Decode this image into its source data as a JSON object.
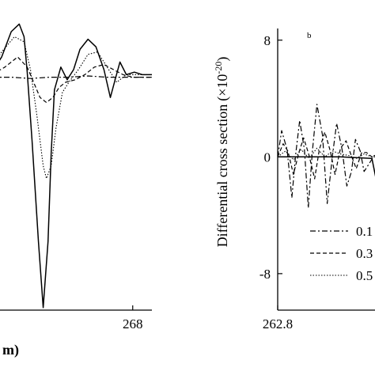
{
  "chart_data": [
    {
      "type": "line",
      "panel_label": "",
      "xlabel": "m)",
      "ylabel": "",
      "xlim": [
        263.6,
        268.6
      ],
      "ylim": [
        -9.2,
        2.8
      ],
      "x_ticks": [
        268
      ],
      "x_tick_labels": [
        "268"
      ],
      "grid": false,
      "series": [
        {
          "name": "",
          "style": "solid",
          "x": [
            263.6,
            263.9,
            264.2,
            264.45,
            264.6,
            264.7,
            264.85,
            265.05,
            265.2,
            265.35,
            265.45,
            265.55,
            265.75,
            265.95,
            266.15,
            266.35,
            266.6,
            266.85,
            267.1,
            267.3,
            267.45,
            267.6,
            267.8,
            268.05,
            268.3,
            268.6
          ],
          "y": [
            0.2,
            0.8,
            1.8,
            2.1,
            1.6,
            0.2,
            -2.5,
            -6.5,
            -9.1,
            -6.5,
            -3.0,
            -0.5,
            0.4,
            -0.1,
            0.3,
            1.1,
            1.5,
            1.2,
            0.3,
            -0.8,
            -0.1,
            0.6,
            0.1,
            0.2,
            0.1,
            0.1
          ]
        },
        {
          "name": "",
          "style": "dash-dot",
          "x": [
            263.6,
            264.2,
            264.8,
            265.4,
            266.0,
            266.6,
            267.2,
            267.8,
            268.6
          ],
          "y": [
            0.0,
            0.0,
            -0.05,
            0.0,
            0.0,
            0.05,
            0.0,
            0.0,
            0.0
          ]
        },
        {
          "name": "",
          "style": "dashed",
          "x": [
            263.6,
            264.0,
            264.4,
            264.7,
            264.9,
            265.1,
            265.3,
            265.5,
            265.7,
            265.9,
            266.2,
            266.5,
            266.8,
            267.1,
            267.4,
            267.7,
            268.0,
            268.3,
            268.6
          ],
          "y": [
            0.1,
            0.4,
            0.8,
            0.4,
            -0.2,
            -0.8,
            -1.0,
            -0.8,
            -0.4,
            -0.2,
            -0.1,
            0.1,
            0.4,
            0.5,
            0.3,
            0.1,
            0.0,
            0.0,
            0.0
          ]
        },
        {
          "name": "",
          "style": "dotted",
          "x": [
            263.6,
            263.9,
            264.3,
            264.6,
            264.8,
            265.0,
            265.2,
            265.3,
            265.45,
            265.6,
            265.8,
            266.0,
            266.3,
            266.6,
            266.9,
            267.2,
            267.5,
            267.8,
            268.1,
            268.6
          ],
          "y": [
            0.4,
            1.0,
            1.6,
            1.4,
            0.3,
            -1.5,
            -3.5,
            -4.0,
            -3.5,
            -2.0,
            -0.6,
            -0.2,
            0.3,
            0.9,
            1.0,
            0.4,
            -0.2,
            0.1,
            0.1,
            0.1
          ]
        }
      ]
    },
    {
      "type": "line",
      "panel_label": "b",
      "xlabel": "",
      "ylabel": "Differential cross section",
      "ylabel_unit": "(×10",
      "ylabel_exponent": "-20",
      "ylabel_close": ")",
      "xlim": [
        262.8,
        264.2
      ],
      "ylim": [
        -10.5,
        8.8
      ],
      "x_ticks": [
        262.8
      ],
      "x_tick_labels": [
        "262.8"
      ],
      "y_ticks": [
        8,
        0,
        -8
      ],
      "y_tick_labels": [
        "8",
        "0",
        "-8"
      ],
      "grid": false,
      "legend": {
        "position": "bottom-right",
        "entries": [
          {
            "style": "dash-dot",
            "label": "0.1"
          },
          {
            "style": "dashed",
            "label": "0.3"
          },
          {
            "style": "dotted",
            "label": "0.5"
          }
        ]
      },
      "series": [
        {
          "name": "",
          "style": "solid",
          "x": [
            262.8,
            263.2,
            263.6,
            264.0,
            264.07,
            264.2
          ],
          "y": [
            0.0,
            0.0,
            0.0,
            -0.1,
            -2.0,
            -1.0
          ]
        },
        {
          "name": "",
          "style": "dash-dot",
          "x": [
            262.8,
            262.85,
            262.92,
            262.98,
            263.03,
            263.08,
            263.14,
            263.19,
            263.24,
            263.3,
            263.37,
            263.43,
            263.5,
            263.55,
            263.62,
            263.68,
            263.74,
            263.79,
            263.85,
            263.9,
            263.96,
            264.03,
            264.08,
            264.2
          ],
          "y": [
            0.0,
            1.8,
            0.5,
            -2.8,
            0.2,
            2.5,
            0.5,
            -3.5,
            0.3,
            3.6,
            1.5,
            -3.2,
            0.2,
            2.3,
            0.5,
            -2.0,
            -1.0,
            1.2,
            0.4,
            -1.0,
            -0.5,
            0.1,
            0.0,
            0.0
          ]
        },
        {
          "name": "",
          "style": "dashed",
          "x": [
            262.8,
            262.87,
            262.93,
            263.0,
            263.07,
            263.13,
            263.2,
            263.27,
            263.33,
            263.4,
            263.47,
            263.53,
            263.6,
            263.67,
            263.73,
            263.8,
            263.87,
            263.93,
            264.0,
            264.2
          ],
          "y": [
            0.0,
            0.9,
            0.4,
            -1.2,
            0.3,
            1.3,
            0.1,
            -1.5,
            0.5,
            1.7,
            0.4,
            -1.2,
            0.6,
            1.1,
            0.2,
            -0.8,
            0.3,
            0.3,
            0.0,
            0.0
          ]
        },
        {
          "name": "",
          "style": "dotted",
          "x": [
            262.8,
            262.9,
            263.0,
            263.1,
            263.2,
            263.3,
            263.4,
            263.5,
            263.6,
            263.7,
            263.8,
            263.9,
            264.0,
            264.2
          ],
          "y": [
            0.0,
            0.4,
            -0.2,
            0.5,
            -0.1,
            0.6,
            0.0,
            0.4,
            0.2,
            0.1,
            -0.1,
            0.2,
            0.0,
            0.0
          ]
        }
      ]
    }
  ]
}
